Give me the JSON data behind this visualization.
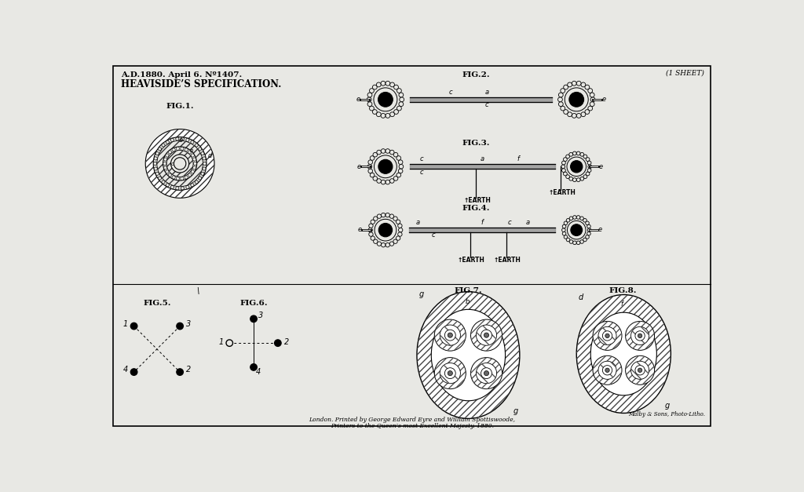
{
  "bg_color": "#e8e8e4",
  "title_line1": "A.D.1880. April 6. Nº1407.",
  "title_line2": "HEAVISIDE’S SPECIFICATION.",
  "sheet_text": "(1 SHEET)",
  "fig1_label": "FIG.1.",
  "fig2_label": "FIG.2.",
  "fig3_label": "FIG.3.",
  "fig4_label": "FIG.4.",
  "fig5_label": "FIG.5.",
  "fig6_label": "FIG.6.",
  "fig7_label": "FIG.7.",
  "fig8_label": "FIG.8.",
  "footer_line1": "London. Printed by George Edward Eyre and William Spottiswoode,",
  "footer_line2": "Printers to the Queen’s most Excellent Majesty. 1880.",
  "printer_text": "Malby & Sons, Photo-Litho.",
  "border": [
    18,
    12,
    988,
    595
  ]
}
